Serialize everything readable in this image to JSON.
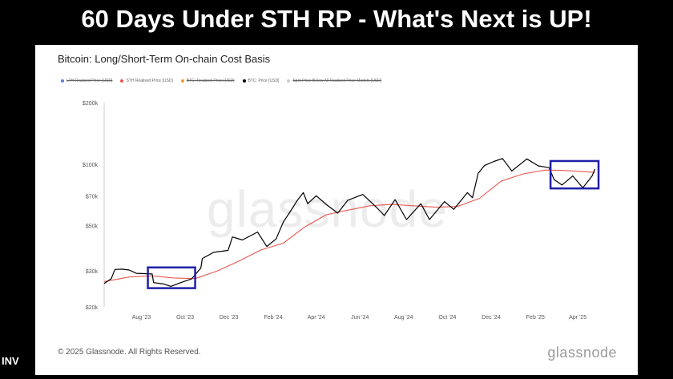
{
  "headline": "60 Days Under STH RP - What's Next is UP!",
  "bottom_left_text": "INV",
  "chart_data": {
    "type": "line",
    "title": "Bitcoin: Long/Short-Term On-chain Cost Basis",
    "legend": [
      {
        "label": "LTH Realised Price [USD]",
        "color": "#5b7fd1",
        "active": false
      },
      {
        "label": "STH Realised Price [USD]",
        "color": "#e8584f",
        "active": true
      },
      {
        "label": "BTC: Realized Price [USD]",
        "color": "#f29a2e",
        "active": false
      },
      {
        "label": "BTC: Price [USD]",
        "color": "#000000",
        "active": true
      },
      {
        "label": "Spot Price Below All Realized Price Models [USD]",
        "color": "#cccccc",
        "active": false
      }
    ],
    "y_scale": "log",
    "y_ticks": [
      {
        "value": 20000,
        "label": "$20k"
      },
      {
        "value": 30000,
        "label": "$30k"
      },
      {
        "value": 50000,
        "label": "$50k"
      },
      {
        "value": 70000,
        "label": "$70k"
      },
      {
        "value": 100000,
        "label": "$100k"
      },
      {
        "value": 200000,
        "label": "$200k"
      }
    ],
    "x_ticks": [
      {
        "date": "2023-08-01",
        "label": "Aug '23"
      },
      {
        "date": "2023-10-01",
        "label": "Oct '23"
      },
      {
        "date": "2023-12-01",
        "label": "Dec '23"
      },
      {
        "date": "2024-02-01",
        "label": "Feb '24"
      },
      {
        "date": "2024-04-01",
        "label": "Apr '24"
      },
      {
        "date": "2024-06-01",
        "label": "Jun '24"
      },
      {
        "date": "2024-08-01",
        "label": "Aug '24"
      },
      {
        "date": "2024-10-01",
        "label": "Oct '24"
      },
      {
        "date": "2024-12-01",
        "label": "Dec '24"
      },
      {
        "date": "2025-02-01",
        "label": "Feb '25"
      },
      {
        "date": "2025-04-01",
        "label": "Apr '25"
      }
    ],
    "xlim": [
      "2023-06-10",
      "2025-05-10"
    ],
    "ylim": [
      20000,
      200000
    ],
    "series": [
      {
        "name": "BTC: Price [USD]",
        "color": "#000000",
        "points": [
          [
            "2023-06-10",
            26000
          ],
          [
            "2023-06-20",
            27500
          ],
          [
            "2023-06-25",
            30500
          ],
          [
            "2023-07-05",
            30600
          ],
          [
            "2023-07-15",
            30300
          ],
          [
            "2023-07-25",
            29200
          ],
          [
            "2023-08-05",
            29100
          ],
          [
            "2023-08-16",
            29000
          ],
          [
            "2023-08-18",
            26300
          ],
          [
            "2023-09-01",
            25900
          ],
          [
            "2023-09-11",
            25200
          ],
          [
            "2023-09-25",
            26300
          ],
          [
            "2023-10-10",
            27400
          ],
          [
            "2023-10-23",
            31000
          ],
          [
            "2023-10-25",
            34500
          ],
          [
            "2023-11-10",
            37000
          ],
          [
            "2023-11-30",
            37800
          ],
          [
            "2023-12-06",
            44000
          ],
          [
            "2023-12-20",
            42500
          ],
          [
            "2024-01-10",
            46500
          ],
          [
            "2024-01-23",
            39500
          ],
          [
            "2024-02-05",
            43000
          ],
          [
            "2024-02-15",
            52000
          ],
          [
            "2024-02-28",
            61000
          ],
          [
            "2024-03-05",
            66000
          ],
          [
            "2024-03-14",
            72500
          ],
          [
            "2024-03-20",
            64000
          ],
          [
            "2024-04-01",
            70000
          ],
          [
            "2024-04-15",
            63500
          ],
          [
            "2024-05-01",
            57500
          ],
          [
            "2024-05-15",
            66500
          ],
          [
            "2024-06-05",
            71000
          ],
          [
            "2024-06-25",
            61000
          ],
          [
            "2024-07-05",
            56000
          ],
          [
            "2024-07-20",
            67000
          ],
          [
            "2024-08-05",
            53500
          ],
          [
            "2024-08-25",
            64000
          ],
          [
            "2024-09-06",
            53500
          ],
          [
            "2024-09-27",
            65500
          ],
          [
            "2024-10-10",
            60000
          ],
          [
            "2024-10-29",
            72500
          ],
          [
            "2024-11-05",
            68500
          ],
          [
            "2024-11-13",
            90000
          ],
          [
            "2024-11-22",
            98500
          ],
          [
            "2024-12-05",
            103000
          ],
          [
            "2024-12-17",
            106500
          ],
          [
            "2024-12-30",
            92500
          ],
          [
            "2025-01-20",
            106000
          ],
          [
            "2025-02-05",
            98000
          ],
          [
            "2025-02-20",
            96000
          ],
          [
            "2025-02-27",
            84000
          ],
          [
            "2025-03-10",
            79000
          ],
          [
            "2025-03-25",
            87500
          ],
          [
            "2025-04-08",
            76500
          ],
          [
            "2025-04-21",
            87500
          ],
          [
            "2025-04-25",
            94500
          ]
        ]
      },
      {
        "name": "STH Realised Price [USD]",
        "color": "#e8584f",
        "points": [
          [
            "2023-06-10",
            26600
          ],
          [
            "2023-07-15",
            28000
          ],
          [
            "2023-08-15",
            28400
          ],
          [
            "2023-09-15",
            27700
          ],
          [
            "2023-10-15",
            27500
          ],
          [
            "2023-11-15",
            30000
          ],
          [
            "2023-12-15",
            33500
          ],
          [
            "2024-01-15",
            38000
          ],
          [
            "2024-02-15",
            41000
          ],
          [
            "2024-03-15",
            49000
          ],
          [
            "2024-04-15",
            56500
          ],
          [
            "2024-05-15",
            59500
          ],
          [
            "2024-06-15",
            62500
          ],
          [
            "2024-07-15",
            63500
          ],
          [
            "2024-08-15",
            62500
          ],
          [
            "2024-09-15",
            61500
          ],
          [
            "2024-10-15",
            62000
          ],
          [
            "2024-11-15",
            68000
          ],
          [
            "2024-12-15",
            82500
          ],
          [
            "2025-01-15",
            89500
          ],
          [
            "2025-02-15",
            93500
          ],
          [
            "2025-03-15",
            93000
          ],
          [
            "2025-04-15",
            91500
          ],
          [
            "2025-04-25",
            91000
          ]
        ]
      }
    ],
    "annotations": [
      {
        "type": "box",
        "color": "#1f1fa8",
        "x": [
          "2023-08-10",
          "2023-10-15"
        ],
        "y": [
          24700,
          31200
        ]
      },
      {
        "type": "box",
        "color": "#1f1fa8",
        "x": [
          "2025-02-22",
          "2025-04-30"
        ],
        "y": [
          76000,
          103500
        ]
      }
    ]
  },
  "footer": {
    "copyright": "© 2025 Glassnode. All Rights Reserved.",
    "logo": "glassnode",
    "watermark": "glassnode"
  }
}
